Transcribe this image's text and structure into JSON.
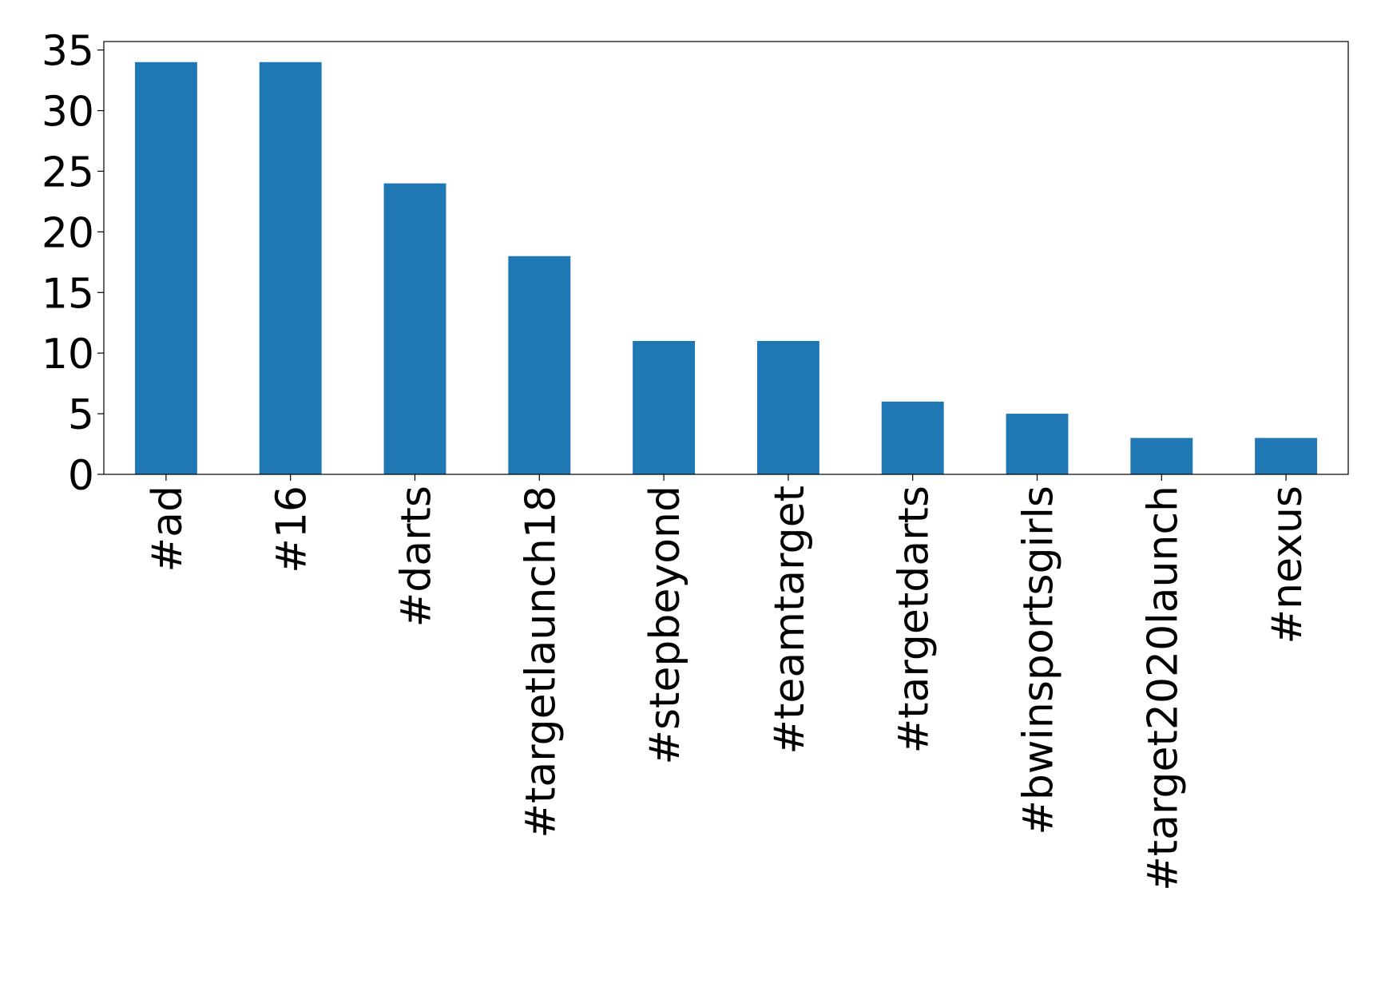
{
  "chart_data": {
    "type": "bar",
    "categories": [
      "#ad",
      "#16",
      "#darts",
      "#targetlaunch18",
      "#stepbeyond",
      "#teamtarget",
      "#targetdarts",
      "#bwinsportsgirls",
      "#target2020launch",
      "#nexus"
    ],
    "values": [
      34,
      34,
      24,
      18,
      11,
      11,
      6,
      5,
      3,
      3
    ],
    "color": "#1f77b4",
    "ylim": [
      0,
      35.7
    ],
    "yticks": [
      0,
      5,
      10,
      15,
      20,
      25,
      30,
      35
    ]
  }
}
